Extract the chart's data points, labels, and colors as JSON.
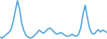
{
  "x": [
    0,
    1,
    2,
    3,
    4,
    5,
    6,
    7,
    8,
    9,
    10,
    11,
    12,
    13,
    14,
    15,
    16,
    17,
    18,
    19,
    20,
    21,
    22,
    23,
    24,
    25,
    26,
    27,
    28,
    29,
    30,
    31,
    32,
    33,
    34,
    35,
    36,
    37,
    38,
    39,
    40,
    41,
    42,
    43,
    44,
    45,
    46,
    47,
    48,
    49
  ],
  "y": [
    2.5,
    2.2,
    2.8,
    3.5,
    4.0,
    5.0,
    7.5,
    11.0,
    14.5,
    11.5,
    7.0,
    4.5,
    3.0,
    2.5,
    2.2,
    2.5,
    3.2,
    4.0,
    4.8,
    4.2,
    3.8,
    4.5,
    5.2,
    5.5,
    4.8,
    4.0,
    3.5,
    3.8,
    4.0,
    3.5,
    3.0,
    2.8,
    3.0,
    3.5,
    3.0,
    2.8,
    3.5,
    5.5,
    10.0,
    13.0,
    9.0,
    5.5,
    3.8,
    3.5,
    4.2,
    5.0,
    4.2,
    4.8,
    4.5,
    4.0
  ],
  "line_color": "#4da6d9",
  "background_color": "#ffffff",
  "linewidth": 1.1
}
